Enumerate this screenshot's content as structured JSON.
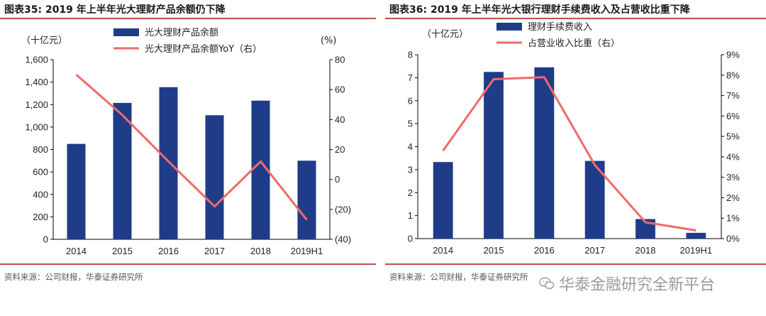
{
  "left": {
    "title": "图表35:  2019 年上半年光大理财产品余额仍下降",
    "source": "资料来源：公司财报，华泰证券研究所",
    "y_left_unit": "（十亿元）",
    "y_right_unit": "(%)",
    "legend": {
      "bar": "光大理财产品余额",
      "line": "光大理财产品余额YoY（右）"
    },
    "y_left_ticks": [
      "0",
      "200",
      "400",
      "600",
      "800",
      "1,000",
      "1,200",
      "1,400",
      "1,600"
    ],
    "y_right_ticks": [
      "(40)",
      "(20)",
      "0",
      "20",
      "40",
      "60",
      "80"
    ],
    "colors": {
      "bar": "#1f3c88",
      "line": "#f06a6a"
    }
  },
  "right": {
    "title": "图表36:  2019 年上半年光大银行理财手续费收入及占营收比重下降",
    "source": "资料来源：公司财报，华泰证券研究所",
    "y_left_unit": "（十亿元）",
    "legend": {
      "bar": "理财手续费收入",
      "line": "占营业收入比重（右）"
    },
    "y_left_ticks": [
      "0",
      "1",
      "2",
      "3",
      "4",
      "5",
      "6",
      "7",
      "8"
    ],
    "y_right_ticks": [
      "0%",
      "1%",
      "2%",
      "3%",
      "4%",
      "5%",
      "6%",
      "7%",
      "8%",
      "9%"
    ],
    "colors": {
      "bar": "#1f3c88",
      "line": "#f06a6a"
    }
  },
  "watermark": "华泰金融研究全新平台",
  "chart_data": [
    {
      "type": "bar",
      "title": "2019 年上半年光大理财产品余额仍下降",
      "categories": [
        "2014",
        "2015",
        "2016",
        "2017",
        "2018",
        "2019H1"
      ],
      "ylabel": "十亿元",
      "ylim": [
        0,
        1600
      ],
      "y2label": "%",
      "y2lim": [
        -40,
        80
      ],
      "series": [
        {
          "name": "光大理财产品余额",
          "type": "bar",
          "axis": "left",
          "values": [
            850,
            1215,
            1355,
            1105,
            1235,
            700
          ]
        },
        {
          "name": "光大理财产品余额YoY（右）",
          "type": "line",
          "axis": "right",
          "values": [
            70,
            43,
            12,
            -18,
            12,
            -27
          ]
        }
      ]
    },
    {
      "type": "bar",
      "title": "2019 年上半年光大银行理财手续费收入及占营收比重下降",
      "categories": [
        "2014",
        "2015",
        "2016",
        "2017",
        "2018",
        "2019H1"
      ],
      "ylabel": "十亿元",
      "ylim": [
        0,
        8
      ],
      "y2lim": [
        0,
        9
      ],
      "y2_format": "percent",
      "series": [
        {
          "name": "理财手续费收入",
          "type": "bar",
          "axis": "left",
          "values": [
            3.33,
            7.25,
            7.45,
            3.38,
            0.85,
            0.25
          ]
        },
        {
          "name": "占营业收入比重（右）",
          "type": "line",
          "axis": "right",
          "values": [
            4.3,
            7.8,
            7.9,
            3.6,
            0.8,
            0.4
          ]
        }
      ]
    }
  ]
}
